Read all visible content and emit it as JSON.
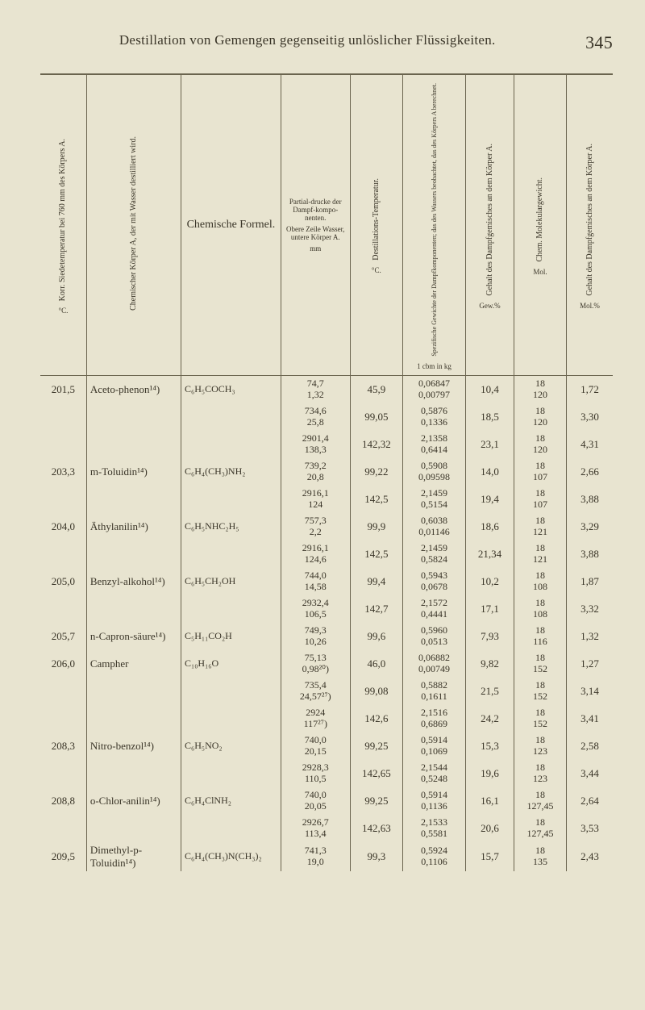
{
  "page": {
    "title": "Destillation von Gemengen gegenseitig unlöslicher Flüssigkeiten.",
    "number": "345",
    "background_color": "#e8e4d0",
    "text_color": "#3a3528",
    "border_color": "#6a644e",
    "title_fontsize": 17,
    "body_fontsize": 13
  },
  "columns": {
    "c0_top": "Korr. Siedetemperatur bei 760 mm des Körpers A.",
    "c0_bot": "°C.",
    "c1": "Chemischer Körper A, der mit Wasser destilliert wird.",
    "c2": "Chemische Formel.",
    "c3_top": "Partial-drucke der Dampf-kompo-nenten.",
    "c3_mid": "Obere Zeile Wasser, untere Körper A.",
    "c3_bot": "mm",
    "c4_top": "Destillations-Temperatur.",
    "c4_bot": "°C.",
    "c5_top": "Spezifische Gewichte der Dampfkomponenten; das des Wassers beobachtet, das des Körpers A berechnet.",
    "c5_bot": "1 cbm in kg",
    "c6_top": "Gehalt des Dampfgemisches an dem Körper A.",
    "c6_bot": "Gew.%",
    "c7_top": "Chem. Molekulargewicht.",
    "c7_bot": "Mol.",
    "c8_top": "Gehalt des Dampfgemisches an dem Körper A.",
    "c8_bot": "Mol.%"
  },
  "rows": [
    {
      "group": true,
      "c0": "201,5",
      "c1": "Aceto-phenon¹⁴)",
      "c2": "C₆H₅COCH₃",
      "c3a": "74,7",
      "c3b": "1,32",
      "c4": "45,9",
      "c5a": "0,06847",
      "c5b": "0,00797",
      "c6": "10,4",
      "c7a": "18",
      "c7b": "120",
      "c8": "1,72"
    },
    {
      "c3a": "734,6",
      "c3b": "25,8",
      "c4": "99,05",
      "c5a": "0,5876",
      "c5b": "0,1336",
      "c6": "18,5",
      "c7a": "18",
      "c7b": "120",
      "c8": "3,30"
    },
    {
      "c3a": "2901,4",
      "c3b": "138,3",
      "c4": "142,32",
      "c5a": "2,1358",
      "c5b": "0,6414",
      "c6": "23,1",
      "c7a": "18",
      "c7b": "120",
      "c8": "4,31"
    },
    {
      "group": true,
      "c0": "203,3",
      "c1": "m-Toluidin¹⁴)",
      "c2": "C₆H₄(CH₃)NH₂",
      "c3a": "739,2",
      "c3b": "20,8",
      "c4": "99,22",
      "c5a": "0,5908",
      "c5b": "0,09598",
      "c6": "14,0",
      "c7a": "18",
      "c7b": "107",
      "c8": "2,66"
    },
    {
      "c3a": "2916,1",
      "c3b": "124",
      "c4": "142,5",
      "c5a": "2,1459",
      "c5b": "0,5154",
      "c6": "19,4",
      "c7a": "18",
      "c7b": "107",
      "c8": "3,88"
    },
    {
      "group": true,
      "c0": "204,0",
      "c1": "Äthylanilin¹⁴)",
      "c2": "C₆H₅NHC₂H₅",
      "c3a": "757,3",
      "c3b": "2,2",
      "c4": "99,9",
      "c5a": "0,6038",
      "c5b": "0,01146",
      "c6": "18,6",
      "c7a": "18",
      "c7b": "121",
      "c8": "3,29"
    },
    {
      "c3a": "2916,1",
      "c3b": "124,6",
      "c4": "142,5",
      "c5a": "2,1459",
      "c5b": "0,5824",
      "c6": "21,34",
      "c7a": "18",
      "c7b": "121",
      "c8": "3,88"
    },
    {
      "group": true,
      "c0": "205,0",
      "c1": "Benzyl-alkohol¹⁴)",
      "c2": "C₆H₅CH₂OH",
      "c3a": "744,0",
      "c3b": "14,58",
      "c4": "99,4",
      "c5a": "0,5943",
      "c5b": "0,0678",
      "c6": "10,2",
      "c7a": "18",
      "c7b": "108",
      "c8": "1,87"
    },
    {
      "c3a": "2932,4",
      "c3b": "106,5",
      "c4": "142,7",
      "c5a": "2,1572",
      "c5b": "0,4441",
      "c6": "17,1",
      "c7a": "18",
      "c7b": "108",
      "c8": "3,32"
    },
    {
      "group": true,
      "c0": "205,7",
      "c1": "n-Capron-säure¹⁴)",
      "c2": "C₅H₁₁CO₂H",
      "c3a": "749,3",
      "c3b": "10,26",
      "c4": "99,6",
      "c5a": "0,5960",
      "c5b": "0,0513",
      "c6": "7,93",
      "c7a": "18",
      "c7b": "116",
      "c8": "1,32"
    },
    {
      "group": true,
      "c0": "206,0",
      "c1": "Campher",
      "c2": "C₁₀H₁₆O",
      "c3a": "75,13",
      "c3b": "0,98²⁰)",
      "c4": "46,0",
      "c5a": "0,06882",
      "c5b": "0,00749",
      "c6": "9,82",
      "c7a": "18",
      "c7b": "152",
      "c8": "1,27"
    },
    {
      "c3a": "735,4",
      "c3b": "24,57²⁷)",
      "c4": "99,08",
      "c5a": "0,5882",
      "c5b": "0,1611",
      "c6": "21,5",
      "c7a": "18",
      "c7b": "152",
      "c8": "3,14"
    },
    {
      "c3a": "2924",
      "c3b": "117²⁷)",
      "c4": "142,6",
      "c5a": "2,1516",
      "c5b": "0,6869",
      "c6": "24,2",
      "c7a": "18",
      "c7b": "152",
      "c8": "3,41"
    },
    {
      "group": true,
      "c0": "208,3",
      "c1": "Nitro-benzol¹⁴)",
      "c2": "C₆H₅NO₂",
      "c3a": "740,0",
      "c3b": "20,15",
      "c4": "99,25",
      "c5a": "0,5914",
      "c5b": "0,1069",
      "c6": "15,3",
      "c7a": "18",
      "c7b": "123",
      "c8": "2,58"
    },
    {
      "c3a": "2928,3",
      "c3b": "110,5",
      "c4": "142,65",
      "c5a": "2,1544",
      "c5b": "0,5248",
      "c6": "19,6",
      "c7a": "18",
      "c7b": "123",
      "c8": "3,44"
    },
    {
      "group": true,
      "c0": "208,8",
      "c1": "o-Chlor-anilin¹⁴)",
      "c2": "C₆H₄ClNH₂",
      "c3a": "740,0",
      "c3b": "20,05",
      "c4": "99,25",
      "c5a": "0,5914",
      "c5b": "0,1136",
      "c6": "16,1",
      "c7a": "18",
      "c7b": "127,45",
      "c8": "2,64"
    },
    {
      "c3a": "2926,7",
      "c3b": "113,4",
      "c4": "142,63",
      "c5a": "2,1533",
      "c5b": "0,5581",
      "c6": "20,6",
      "c7a": "18",
      "c7b": "127,45",
      "c8": "3,53"
    },
    {
      "group": true,
      "c0": "209,5",
      "c1": "Dimethyl-p-Toluidin¹⁴)",
      "c2": "C₆H₄(CH₃)N(CH₃)₂",
      "c3a": "741,3",
      "c3b": "19,0",
      "c4": "99,3",
      "c5a": "0,5924",
      "c5b": "0,1106",
      "c6": "15,7",
      "c7a": "18",
      "c7b": "135",
      "c8": "2,43"
    }
  ]
}
